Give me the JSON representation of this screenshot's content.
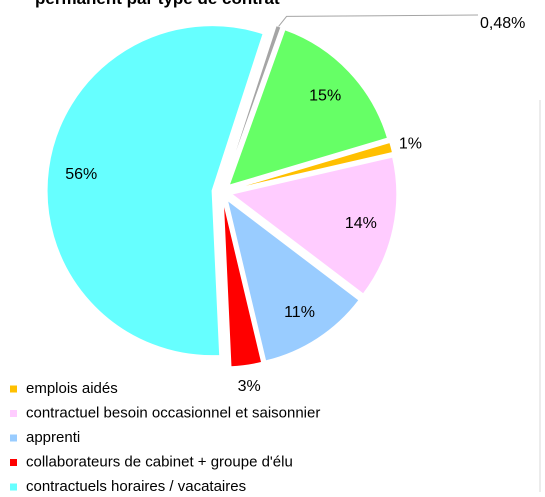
{
  "chart_data": {
    "type": "pie",
    "title": "permanent par type de contrat",
    "categories": [
      null,
      null,
      "emplois aidés",
      "contractuel besoin occasionnel et saisonnier",
      "apprenti",
      "collaborateurs de cabinet + groupe d'élu",
      "contractuels horaires / vacataires"
    ],
    "values": [
      0.48,
      15,
      1,
      14,
      11,
      3,
      56
    ],
    "value_labels": [
      "0,48%",
      "15%",
      "1%",
      "14%",
      "11%",
      "3%",
      "56%"
    ],
    "colors": [
      "#a5a5a5",
      "#66ff66",
      "#ffc000",
      "#ffccff",
      "#99ccff",
      "#ff0000",
      "#66ffff"
    ],
    "legend": "bottom"
  }
}
